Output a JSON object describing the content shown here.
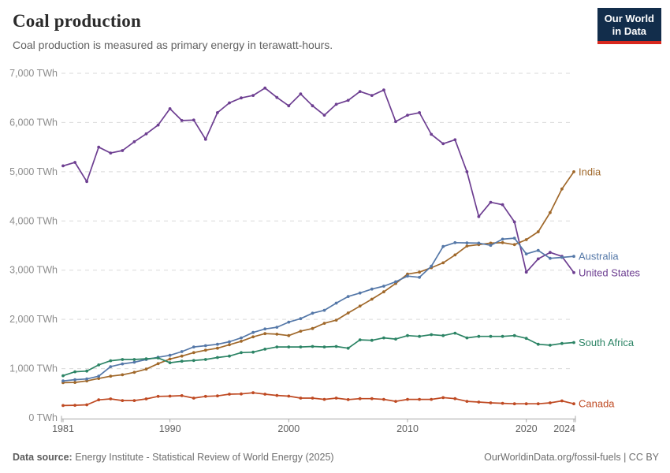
{
  "header": {
    "title": "Coal production",
    "subtitle": "Coal production is measured as primary energy in terawatt-hours."
  },
  "logo": {
    "line1": "Our World",
    "line2": "in Data",
    "bg_color": "#122d4b",
    "accent_color": "#d8281e"
  },
  "footer": {
    "source_label": "Data source:",
    "source_text": " Energy Institute - Statistical Review of World Energy (2025)",
    "right_text": "OurWorldinData.org/fossil-fuels | CC BY"
  },
  "chart_data": {
    "type": "line",
    "title": "Coal production",
    "unit": "TWh",
    "grid": "dashed-horizontal",
    "legend": "end-of-line-labels",
    "ylim": [
      0,
      7000
    ],
    "y_ticks": [
      0,
      1000,
      2000,
      3000,
      4000,
      5000,
      6000,
      7000
    ],
    "x_ticks": [
      1981,
      1990,
      2000,
      2010,
      2020,
      2024
    ],
    "x": [
      1981,
      1982,
      1983,
      1984,
      1985,
      1986,
      1987,
      1988,
      1989,
      1990,
      1991,
      1992,
      1993,
      1994,
      1995,
      1996,
      1997,
      1998,
      1999,
      2000,
      2001,
      2002,
      2003,
      2004,
      2005,
      2006,
      2007,
      2008,
      2009,
      2010,
      2011,
      2012,
      2013,
      2014,
      2015,
      2016,
      2017,
      2018,
      2019,
      2020,
      2021,
      2022,
      2023,
      2024
    ],
    "series": [
      {
        "name": "United States",
        "color": "#6d3e91",
        "values": [
          5120,
          5190,
          4800,
          5500,
          5380,
          5430,
          5610,
          5770,
          5950,
          6280,
          6040,
          6050,
          5660,
          6200,
          6400,
          6500,
          6550,
          6700,
          6510,
          6340,
          6580,
          6340,
          6150,
          6370,
          6450,
          6630,
          6550,
          6660,
          6020,
          6150,
          6200,
          5760,
          5570,
          5650,
          5000,
          4090,
          4380,
          4330,
          3980,
          2960,
          3230,
          3360,
          3280,
          2950
        ]
      },
      {
        "name": "India",
        "color": "#a0682a",
        "values": [
          715,
          720,
          750,
          800,
          845,
          875,
          925,
          990,
          1100,
          1195,
          1255,
          1325,
          1375,
          1415,
          1485,
          1555,
          1645,
          1710,
          1700,
          1670,
          1760,
          1815,
          1920,
          1985,
          2130,
          2270,
          2410,
          2560,
          2730,
          2920,
          2960,
          3050,
          3150,
          3310,
          3490,
          3520,
          3550,
          3560,
          3520,
          3620,
          3780,
          4170,
          4650,
          5000
        ]
      },
      {
        "name": "Australia",
        "color": "#5578a8",
        "values": [
          750,
          775,
          790,
          845,
          1040,
          1095,
          1130,
          1185,
          1230,
          1270,
          1345,
          1440,
          1465,
          1495,
          1545,
          1625,
          1735,
          1805,
          1840,
          1945,
          2015,
          2125,
          2185,
          2330,
          2465,
          2535,
          2615,
          2675,
          2765,
          2880,
          2855,
          3080,
          3480,
          3560,
          3555,
          3550,
          3505,
          3630,
          3650,
          3330,
          3400,
          3240,
          3260,
          3280
        ]
      },
      {
        "name": "South Africa",
        "color": "#2c8465",
        "values": [
          855,
          935,
          950,
          1075,
          1160,
          1185,
          1185,
          1200,
          1215,
          1120,
          1150,
          1165,
          1185,
          1225,
          1255,
          1325,
          1335,
          1395,
          1440,
          1440,
          1440,
          1450,
          1440,
          1450,
          1415,
          1585,
          1575,
          1625,
          1600,
          1670,
          1655,
          1690,
          1670,
          1720,
          1625,
          1655,
          1655,
          1655,
          1670,
          1615,
          1495,
          1475,
          1510,
          1530
        ]
      },
      {
        "name": "Canada",
        "color": "#bf4a23",
        "values": [
          250,
          255,
          265,
          365,
          385,
          350,
          350,
          385,
          435,
          440,
          450,
          400,
          435,
          445,
          480,
          485,
          510,
          480,
          455,
          440,
          400,
          400,
          375,
          400,
          370,
          390,
          390,
          375,
          335,
          375,
          375,
          375,
          410,
          390,
          335,
          320,
          305,
          295,
          285,
          285,
          285,
          305,
          345,
          285
        ]
      }
    ]
  }
}
